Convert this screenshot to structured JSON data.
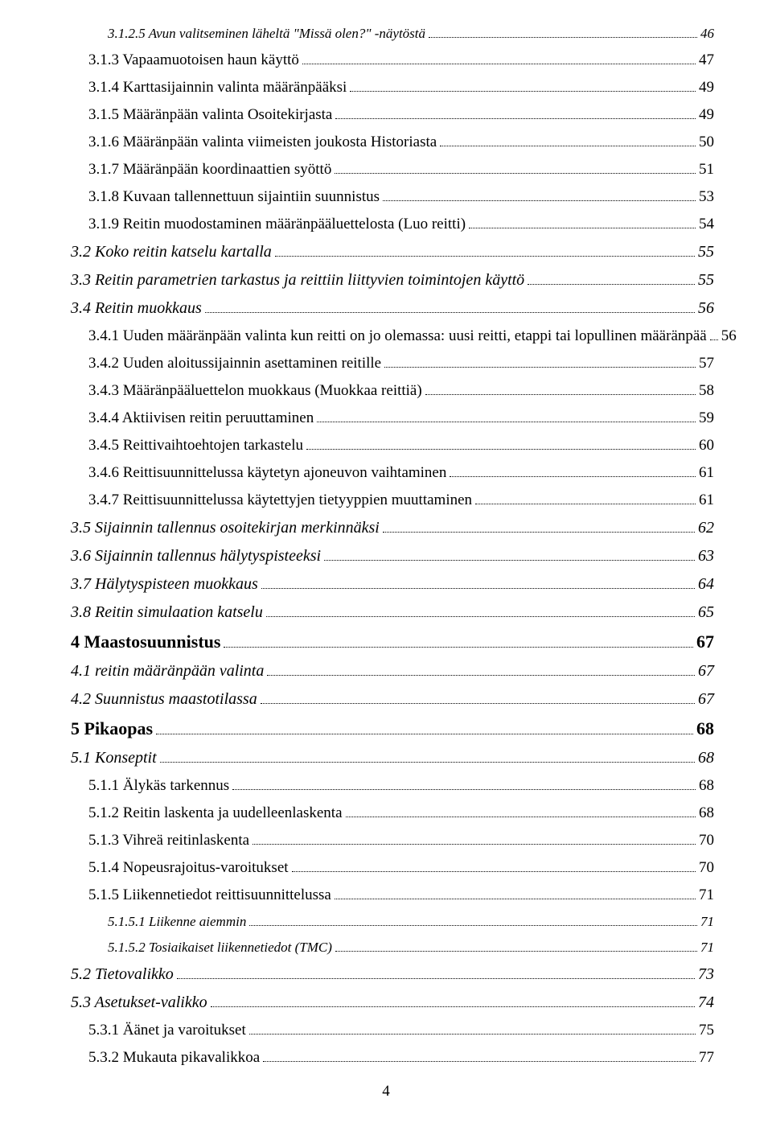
{
  "pageNumber": "4",
  "entries": [
    {
      "text": "3.1.2.5 Avun valitseminen läheltä \"Missä olen?\" -näytöstä",
      "page": "46",
      "indent": 2,
      "italic": true,
      "bold": false,
      "fontSize": 17
    },
    {
      "text": "3.1.3 Vapaamuotoisen haun käyttö",
      "page": "47",
      "indent": 1,
      "italic": false,
      "bold": false,
      "fontSize": 19
    },
    {
      "text": "3.1.4 Karttasijainnin valinta määränpääksi",
      "page": "49",
      "indent": 1,
      "italic": false,
      "bold": false,
      "fontSize": 19
    },
    {
      "text": "3.1.5 Määränpään valinta Osoitekirjasta",
      "page": "49",
      "indent": 1,
      "italic": false,
      "bold": false,
      "fontSize": 19
    },
    {
      "text": "3.1.6 Määränpään valinta viimeisten joukosta Historiasta",
      "page": "50",
      "indent": 1,
      "italic": false,
      "bold": false,
      "fontSize": 19
    },
    {
      "text": "3.1.7 Määränpään koordinaattien syöttö",
      "page": "51",
      "indent": 1,
      "italic": false,
      "bold": false,
      "fontSize": 19
    },
    {
      "text": "3.1.8 Kuvaan tallennettuun sijaintiin suunnistus",
      "page": "53",
      "indent": 1,
      "italic": false,
      "bold": false,
      "fontSize": 19
    },
    {
      "text": "3.1.9 Reitin muodostaminen määränpääluettelosta (Luo reitti)",
      "page": "54",
      "indent": 1,
      "italic": false,
      "bold": false,
      "fontSize": 19
    },
    {
      "text": "3.2 Koko reitin katselu kartalla",
      "page": "55",
      "indent": 0,
      "italic": true,
      "bold": false,
      "fontSize": 20
    },
    {
      "text": "3.3 Reitin parametrien tarkastus ja reittiin liittyvien toimintojen käyttö",
      "page": "55",
      "indent": 0,
      "italic": true,
      "bold": false,
      "fontSize": 20
    },
    {
      "text": "3.4 Reitin muokkaus",
      "page": "56",
      "indent": 0,
      "italic": true,
      "bold": false,
      "fontSize": 20
    },
    {
      "text": "3.4.1 Uuden määränpään valinta kun reitti on jo olemassa: uusi reitti, etappi tai lopullinen määränpää",
      "page": "56",
      "indent": 1,
      "italic": false,
      "bold": false,
      "fontSize": 19
    },
    {
      "text": "3.4.2 Uuden aloitussijainnin asettaminen reitille",
      "page": "57",
      "indent": 1,
      "italic": false,
      "bold": false,
      "fontSize": 19
    },
    {
      "text": "3.4.3 Määränpääluettelon muokkaus (Muokkaa reittiä)",
      "page": "58",
      "indent": 1,
      "italic": false,
      "bold": false,
      "fontSize": 19
    },
    {
      "text": "3.4.4 Aktiivisen reitin peruuttaminen",
      "page": "59",
      "indent": 1,
      "italic": false,
      "bold": false,
      "fontSize": 19
    },
    {
      "text": "3.4.5 Reittivaihtoehtojen tarkastelu",
      "page": "60",
      "indent": 1,
      "italic": false,
      "bold": false,
      "fontSize": 19
    },
    {
      "text": "3.4.6 Reittisuunnittelussa käytetyn ajoneuvon vaihtaminen",
      "page": "61",
      "indent": 1,
      "italic": false,
      "bold": false,
      "fontSize": 19
    },
    {
      "text": "3.4.7 Reittisuunnittelussa käytettyjen tietyyppien muuttaminen",
      "page": "61",
      "indent": 1,
      "italic": false,
      "bold": false,
      "fontSize": 19
    },
    {
      "text": "3.5 Sijainnin tallennus osoitekirjan merkinnäksi",
      "page": "62",
      "indent": 0,
      "italic": true,
      "bold": false,
      "fontSize": 20
    },
    {
      "text": "3.6 Sijainnin tallennus hälytyspisteeksi",
      "page": "63",
      "indent": 0,
      "italic": true,
      "bold": false,
      "fontSize": 20
    },
    {
      "text": "3.7 Hälytyspisteen muokkaus",
      "page": "64",
      "indent": 0,
      "italic": true,
      "bold": false,
      "fontSize": 20
    },
    {
      "text": "3.8 Reitin simulaation katselu",
      "page": "65",
      "indent": 0,
      "italic": true,
      "bold": false,
      "fontSize": 20
    },
    {
      "text": "4 Maastosuunnistus",
      "page": "67",
      "indent": 0,
      "italic": false,
      "bold": true,
      "fontSize": 22
    },
    {
      "text": "4.1 reitin määränpään valinta",
      "page": "67",
      "indent": 0,
      "italic": true,
      "bold": false,
      "fontSize": 20
    },
    {
      "text": "4.2 Suunnistus maastotilassa",
      "page": "67",
      "indent": 0,
      "italic": true,
      "bold": false,
      "fontSize": 20
    },
    {
      "text": "5 Pikaopas",
      "page": "68",
      "indent": 0,
      "italic": false,
      "bold": true,
      "fontSize": 22
    },
    {
      "text": "5.1 Konseptit",
      "page": "68",
      "indent": 0,
      "italic": true,
      "bold": false,
      "fontSize": 20
    },
    {
      "text": "5.1.1 Älykäs tarkennus",
      "page": "68",
      "indent": 1,
      "italic": false,
      "bold": false,
      "fontSize": 19
    },
    {
      "text": "5.1.2 Reitin laskenta ja uudelleenlaskenta",
      "page": "68",
      "indent": 1,
      "italic": false,
      "bold": false,
      "fontSize": 19
    },
    {
      "text": "5.1.3 Vihreä reitinlaskenta",
      "page": "70",
      "indent": 1,
      "italic": false,
      "bold": false,
      "fontSize": 19
    },
    {
      "text": "5.1.4 Nopeusrajoitus-varoitukset",
      "page": "70",
      "indent": 1,
      "italic": false,
      "bold": false,
      "fontSize": 19
    },
    {
      "text": "5.1.5 Liikennetiedot reittisuunnittelussa",
      "page": "71",
      "indent": 1,
      "italic": false,
      "bold": false,
      "fontSize": 19
    },
    {
      "text": "5.1.5.1 Liikenne aiemmin",
      "page": "71",
      "indent": 2,
      "italic": true,
      "bold": false,
      "fontSize": 17
    },
    {
      "text": "5.1.5.2 Tosiaikaiset liikennetiedot (TMC)",
      "page": "71",
      "indent": 2,
      "italic": true,
      "bold": false,
      "fontSize": 17
    },
    {
      "text": "5.2 Tietovalikko",
      "page": "73",
      "indent": 0,
      "italic": true,
      "bold": false,
      "fontSize": 20
    },
    {
      "text": "5.3 Asetukset-valikko",
      "page": "74",
      "indent": 0,
      "italic": true,
      "bold": false,
      "fontSize": 20
    },
    {
      "text": "5.3.1 Äänet ja varoitukset",
      "page": "75",
      "indent": 1,
      "italic": false,
      "bold": false,
      "fontSize": 19
    },
    {
      "text": "5.3.2 Mukauta pikavalikkoa",
      "page": "77",
      "indent": 1,
      "italic": false,
      "bold": false,
      "fontSize": 19
    }
  ],
  "indentPx": [
    16,
    38,
    62
  ],
  "lineSpacing": 12
}
